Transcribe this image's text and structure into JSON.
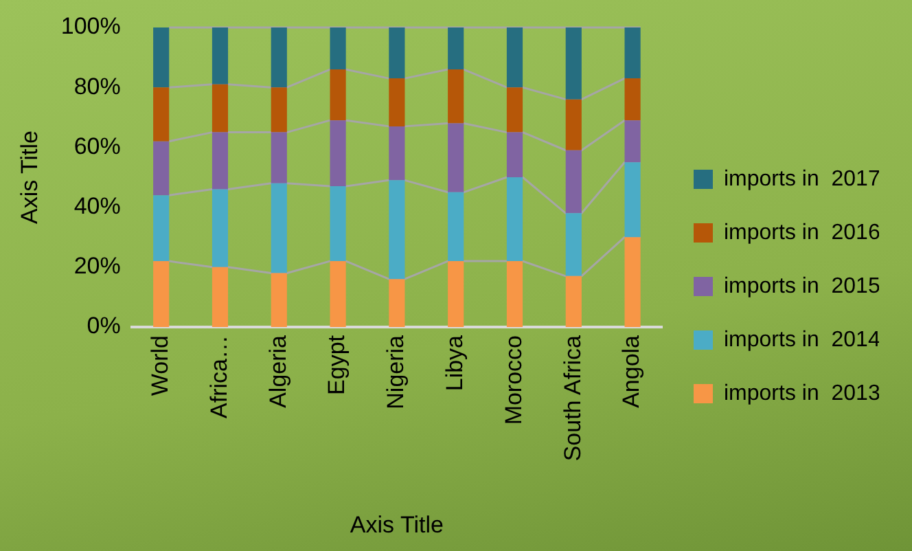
{
  "chart_data": {
    "type": "bar",
    "stacked": true,
    "xlabel": "Axis Title",
    "ylabel": "Axis Title",
    "categories": [
      "World",
      "Africa…",
      "Algeria",
      "Egypt",
      "Nigeria",
      "Libya",
      "Morocco",
      "South Africa",
      "Angola"
    ],
    "series": [
      {
        "name": "imports in  2013",
        "color": "#f79646",
        "values": [
          22,
          20,
          18,
          22,
          16,
          22,
          22,
          17,
          30
        ]
      },
      {
        "name": "imports in  2014",
        "color": "#4bacc6",
        "values": [
          22,
          26,
          30,
          25,
          33,
          23,
          28,
          21,
          25
        ]
      },
      {
        "name": "imports in  2015",
        "color": "#8064a2",
        "values": [
          18,
          19,
          17,
          22,
          18,
          23,
          15,
          21,
          14
        ]
      },
      {
        "name": "imports in  2016",
        "color": "#b65708",
        "values": [
          18,
          16,
          15,
          17,
          16,
          18,
          15,
          17,
          14
        ]
      },
      {
        "name": "imports in  2017",
        "color": "#266e80",
        "values": [
          20,
          19,
          20,
          14,
          17,
          14,
          20,
          24,
          17
        ]
      }
    ],
    "ylim": [
      0,
      100
    ],
    "yticks": [
      {
        "value": 0,
        "label": "0%"
      },
      {
        "value": 20,
        "label": "20%"
      },
      {
        "value": 40,
        "label": "40%"
      },
      {
        "value": 60,
        "label": "60%"
      },
      {
        "value": 80,
        "label": "80%"
      },
      {
        "value": 100,
        "label": "100%"
      }
    ],
    "grid": false,
    "legend": "right"
  }
}
